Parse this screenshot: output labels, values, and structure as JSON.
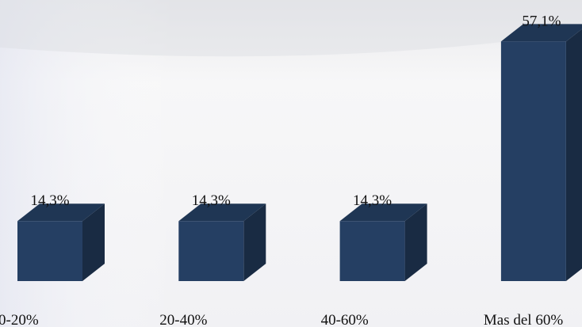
{
  "chart_data": {
    "type": "bar3d",
    "categories": [
      "0-20%",
      "20-40%",
      "40-60%",
      "Mas del 60%"
    ],
    "values": [
      14.3,
      14.3,
      14.3,
      57.1
    ],
    "value_labels": [
      "14,3%",
      "14,3%",
      "14,3%",
      "57,1%"
    ],
    "color": "#253f63"
  }
}
